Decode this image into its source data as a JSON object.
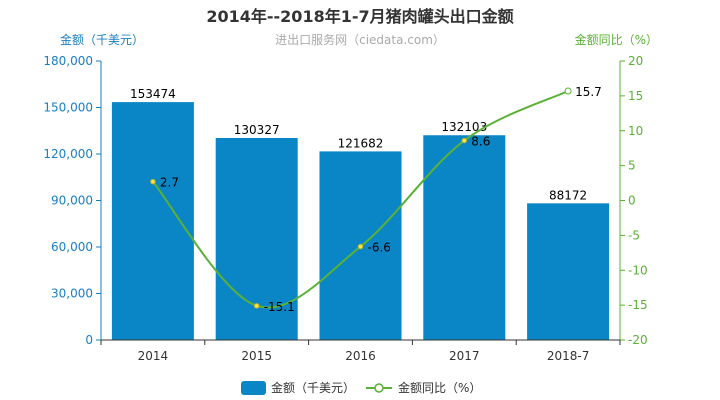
{
  "chart_data": {
    "type": "bar",
    "title": "2014年--2018年1-7月猪肉罐头出口金额",
    "subtitle": "进出口服务网（ciedata.com）",
    "categories": [
      "2014",
      "2015",
      "2016",
      "2017",
      "2018-7"
    ],
    "series": [
      {
        "name": "金额（千美元）",
        "type": "bar",
        "axis": "left",
        "color": "#0a86c6",
        "values": [
          153474,
          130327,
          121682,
          132103,
          88172
        ]
      },
      {
        "name": "金额同比（%）",
        "type": "line",
        "axis": "right",
        "color": "#5ab136",
        "values": [
          2.7,
          -15.1,
          -6.6,
          8.6,
          15.7
        ]
      }
    ],
    "y_left": {
      "label": "金额（千美元）",
      "min": 0,
      "max": 180000,
      "ticks": [
        "0",
        "30,000",
        "60,000",
        "90,000",
        "120,000",
        "150,000",
        "180,000"
      ],
      "tick_values": [
        0,
        30000,
        60000,
        90000,
        120000,
        150000,
        180000
      ]
    },
    "y_right": {
      "label": "金额同比（%）",
      "min": -20,
      "max": 20,
      "ticks": [
        "-20",
        "-15",
        "-10",
        "-5",
        "0",
        "5",
        "10",
        "15",
        "20"
      ],
      "tick_values": [
        -20,
        -15,
        -10,
        -5,
        0,
        5,
        10,
        15,
        20
      ]
    },
    "grid": false,
    "legend_position": "bottom"
  }
}
